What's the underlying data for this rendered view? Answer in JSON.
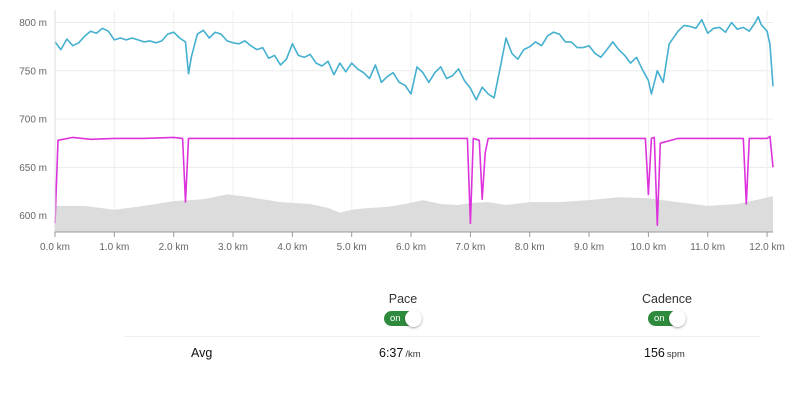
{
  "chart_data": {
    "type": "line",
    "x_ticks": [
      "0.0 km",
      "1.0 km",
      "2.0 km",
      "3.0 km",
      "4.0 km",
      "5.0 km",
      "6.0 km",
      "7.0 km",
      "8.0 km",
      "9.0 km",
      "10.0 km",
      "11.0 km",
      "12.0 km"
    ],
    "y_ticks": [
      "800 m",
      "750 m",
      "700 m",
      "650 m",
      "600 m"
    ],
    "xlim": [
      0,
      12.1
    ],
    "ylim": [
      583,
      813
    ],
    "grid": true,
    "series": [
      {
        "color": "#45b0cf",
        "style": "line",
        "points": [
          [
            0,
            780
          ],
          [
            0.1,
            772
          ],
          [
            0.2,
            783
          ],
          [
            0.3,
            776
          ],
          [
            0.4,
            779
          ],
          [
            0.5,
            786
          ],
          [
            0.6,
            791
          ],
          [
            0.7,
            789
          ],
          [
            0.8,
            794
          ],
          [
            0.9,
            791
          ],
          [
            1.0,
            782
          ],
          [
            1.1,
            784
          ],
          [
            1.2,
            782
          ],
          [
            1.3,
            784
          ],
          [
            1.4,
            782
          ],
          [
            1.5,
            780
          ],
          [
            1.6,
            781
          ],
          [
            1.7,
            779
          ],
          [
            1.8,
            781
          ],
          [
            1.9,
            788
          ],
          [
            2.0,
            790
          ],
          [
            2.1,
            784
          ],
          [
            2.2,
            780
          ],
          [
            2.25,
            747
          ],
          [
            2.3,
            765
          ],
          [
            2.4,
            788
          ],
          [
            2.5,
            792
          ],
          [
            2.6,
            784
          ],
          [
            2.7,
            790
          ],
          [
            2.8,
            788
          ],
          [
            2.9,
            781
          ],
          [
            3.0,
            779
          ],
          [
            3.1,
            778
          ],
          [
            3.2,
            781
          ],
          [
            3.3,
            776
          ],
          [
            3.4,
            772
          ],
          [
            3.5,
            774
          ],
          [
            3.6,
            763
          ],
          [
            3.7,
            766
          ],
          [
            3.8,
            756
          ],
          [
            3.9,
            762
          ],
          [
            4.0,
            778
          ],
          [
            4.1,
            766
          ],
          [
            4.2,
            764
          ],
          [
            4.3,
            767
          ],
          [
            4.4,
            758
          ],
          [
            4.5,
            755
          ],
          [
            4.6,
            760
          ],
          [
            4.7,
            746
          ],
          [
            4.8,
            758
          ],
          [
            4.9,
            749
          ],
          [
            5.0,
            758
          ],
          [
            5.1,
            752
          ],
          [
            5.2,
            748
          ],
          [
            5.3,
            742
          ],
          [
            5.4,
            756
          ],
          [
            5.5,
            738
          ],
          [
            5.6,
            744
          ],
          [
            5.7,
            748
          ],
          [
            5.8,
            738
          ],
          [
            5.9,
            735
          ],
          [
            6.0,
            726
          ],
          [
            6.1,
            754
          ],
          [
            6.2,
            748
          ],
          [
            6.3,
            738
          ],
          [
            6.4,
            748
          ],
          [
            6.5,
            754
          ],
          [
            6.6,
            742
          ],
          [
            6.7,
            745
          ],
          [
            6.8,
            752
          ],
          [
            6.9,
            740
          ],
          [
            7.0,
            732
          ],
          [
            7.1,
            720
          ],
          [
            7.2,
            733
          ],
          [
            7.3,
            726
          ],
          [
            7.4,
            722
          ],
          [
            7.5,
            752
          ],
          [
            7.6,
            784
          ],
          [
            7.7,
            768
          ],
          [
            7.8,
            762
          ],
          [
            7.9,
            772
          ],
          [
            8.0,
            775
          ],
          [
            8.1,
            780
          ],
          [
            8.2,
            776
          ],
          [
            8.3,
            786
          ],
          [
            8.4,
            790
          ],
          [
            8.5,
            788
          ],
          [
            8.6,
            780
          ],
          [
            8.7,
            780
          ],
          [
            8.8,
            774
          ],
          [
            8.9,
            774
          ],
          [
            9.0,
            776
          ],
          [
            9.1,
            768
          ],
          [
            9.2,
            764
          ],
          [
            9.3,
            772
          ],
          [
            9.4,
            780
          ],
          [
            9.5,
            772
          ],
          [
            9.6,
            766
          ],
          [
            9.7,
            758
          ],
          [
            9.8,
            764
          ],
          [
            9.9,
            751
          ],
          [
            10.0,
            740
          ],
          [
            10.05,
            726
          ],
          [
            10.15,
            750
          ],
          [
            10.25,
            738
          ],
          [
            10.35,
            778
          ],
          [
            10.5,
            791
          ],
          [
            10.6,
            797
          ],
          [
            10.7,
            796
          ],
          [
            10.8,
            794
          ],
          [
            10.9,
            803
          ],
          [
            11.0,
            789
          ],
          [
            11.1,
            794
          ],
          [
            11.2,
            795
          ],
          [
            11.3,
            790
          ],
          [
            11.4,
            800
          ],
          [
            11.5,
            793
          ],
          [
            11.6,
            795
          ],
          [
            11.7,
            791
          ],
          [
            11.8,
            800
          ],
          [
            11.85,
            806
          ],
          [
            11.9,
            798
          ],
          [
            12.0,
            791
          ],
          [
            12.05,
            777
          ],
          [
            12.1,
            734
          ]
        ]
      },
      {
        "color": "#dd33dd",
        "style": "line",
        "points": [
          [
            0,
            592
          ],
          [
            0.05,
            678
          ],
          [
            0.3,
            681
          ],
          [
            0.6,
            679
          ],
          [
            1.0,
            680
          ],
          [
            1.5,
            680
          ],
          [
            2.0,
            681
          ],
          [
            2.15,
            680
          ],
          [
            2.2,
            614
          ],
          [
            2.25,
            680
          ],
          [
            2.5,
            680
          ],
          [
            3.0,
            680
          ],
          [
            3.5,
            680
          ],
          [
            4.0,
            680
          ],
          [
            4.5,
            680
          ],
          [
            5.0,
            680
          ],
          [
            5.5,
            680
          ],
          [
            6.0,
            680
          ],
          [
            6.5,
            680
          ],
          [
            6.95,
            680
          ],
          [
            7.0,
            592
          ],
          [
            7.05,
            680
          ],
          [
            7.15,
            678
          ],
          [
            7.2,
            617
          ],
          [
            7.25,
            665
          ],
          [
            7.3,
            680
          ],
          [
            7.5,
            680
          ],
          [
            8.0,
            680
          ],
          [
            8.5,
            680
          ],
          [
            9.0,
            680
          ],
          [
            9.5,
            680
          ],
          [
            9.95,
            680
          ],
          [
            10.0,
            622
          ],
          [
            10.05,
            680
          ],
          [
            10.1,
            681
          ],
          [
            10.15,
            590
          ],
          [
            10.2,
            675
          ],
          [
            10.5,
            680
          ],
          [
            11.0,
            680
          ],
          [
            11.5,
            680
          ],
          [
            11.6,
            680
          ],
          [
            11.65,
            612
          ],
          [
            11.7,
            680
          ],
          [
            12.0,
            680
          ],
          [
            12.05,
            682
          ],
          [
            12.1,
            650
          ]
        ]
      },
      {
        "color": "#dcdcdc",
        "style": "area",
        "points": [
          [
            0,
            610
          ],
          [
            0.5,
            610
          ],
          [
            1.0,
            606
          ],
          [
            1.5,
            610
          ],
          [
            2.0,
            615
          ],
          [
            2.5,
            617
          ],
          [
            2.9,
            622
          ],
          [
            3.3,
            619
          ],
          [
            3.8,
            614
          ],
          [
            4.3,
            612
          ],
          [
            4.6,
            608
          ],
          [
            4.8,
            603
          ],
          [
            5.0,
            606
          ],
          [
            5.3,
            608
          ],
          [
            5.6,
            609
          ],
          [
            5.9,
            612
          ],
          [
            6.2,
            616
          ],
          [
            6.5,
            612
          ],
          [
            6.8,
            611
          ],
          [
            7.0,
            613
          ],
          [
            7.3,
            614
          ],
          [
            7.6,
            611
          ],
          [
            8.0,
            614
          ],
          [
            8.5,
            614
          ],
          [
            9.0,
            616
          ],
          [
            9.5,
            619
          ],
          [
            10.0,
            618
          ],
          [
            10.5,
            614
          ],
          [
            11.0,
            610
          ],
          [
            11.5,
            612
          ],
          [
            12.1,
            620
          ]
        ]
      }
    ]
  },
  "metrics": {
    "pace": {
      "label": "Pace",
      "toggle": "on"
    },
    "cadence": {
      "label": "Cadence",
      "toggle": "on"
    }
  },
  "summary": {
    "label": "Avg",
    "pace_value": "6:37",
    "pace_unit": "/km",
    "cadence_value": "156",
    "cadence_unit": "spm"
  }
}
